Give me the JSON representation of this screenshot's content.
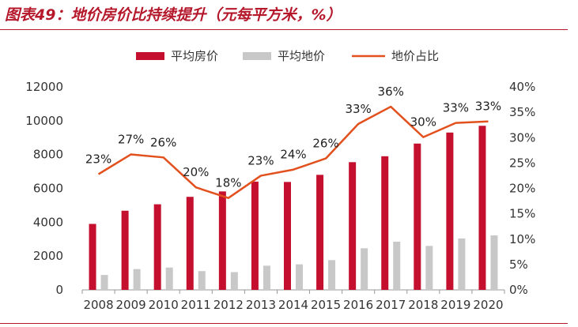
{
  "figure": {
    "title": "图表49：地价房价比持续提升（元每平方米，%）"
  },
  "chart_data": {
    "type": "bar",
    "categories": [
      "2008",
      "2009",
      "2010",
      "2011",
      "2012",
      "2013",
      "2014",
      "2015",
      "2016",
      "2017",
      "2018",
      "2019",
      "2020"
    ],
    "series": [
      {
        "name": "平均房价",
        "kind": "bar",
        "axis": "left",
        "color": "#c4102e",
        "values": [
          3900,
          4680,
          5060,
          5500,
          5820,
          6400,
          6380,
          6800,
          7550,
          7900,
          8650,
          9300,
          9700
        ]
      },
      {
        "name": "平均地价",
        "kind": "bar",
        "axis": "left",
        "color": "#c8c8c8",
        "values": [
          880,
          1230,
          1320,
          1110,
          1050,
          1430,
          1510,
          1760,
          2460,
          2850,
          2600,
          3040,
          3220
        ]
      },
      {
        "name": "地价占比",
        "kind": "line",
        "axis": "right",
        "color": "#e2501e",
        "values": [
          22.8,
          26.7,
          26.1,
          20.2,
          18.1,
          22.5,
          23.7,
          25.9,
          32.7,
          36.1,
          30.1,
          32.9,
          33.2
        ],
        "labels": [
          "23%",
          "27%",
          "26%",
          "20%",
          "18%",
          "23%",
          "24%",
          "26%",
          "33%",
          "36%",
          "30%",
          "33%",
          "33%"
        ]
      }
    ],
    "yleft": {
      "min": 0,
      "max": 12000,
      "ticks": [
        "0",
        "2000",
        "4000",
        "6000",
        "8000",
        "10000",
        "12000"
      ]
    },
    "yright": {
      "min": 0,
      "max": 40,
      "ticks": [
        "0%",
        "5%",
        "10%",
        "15%",
        "20%",
        "25%",
        "30%",
        "35%",
        "40%"
      ]
    },
    "legend_position": "top",
    "grid": false
  }
}
